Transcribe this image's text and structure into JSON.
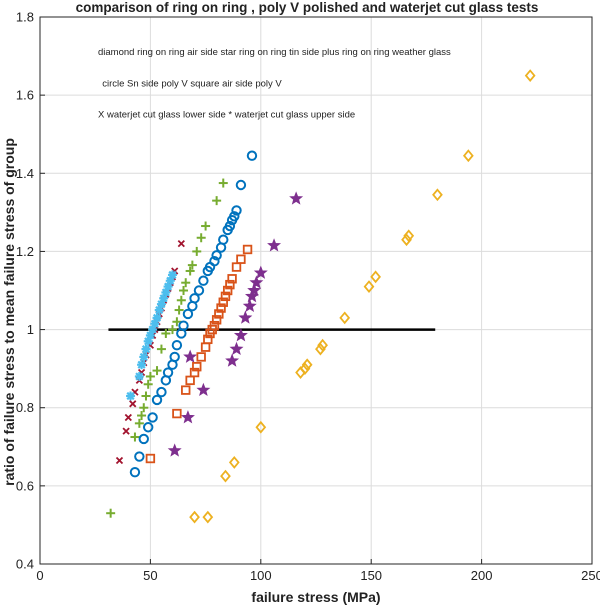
{
  "chart_data": {
    "type": "scatter",
    "title": "comparison of ring on ring , poly V polished and waterjet cut glass tests",
    "xlabel": "failure stress (MPa)",
    "ylabel": "ratio of failure stress to mean failure stress of group",
    "xlim": [
      0,
      250
    ],
    "ylim": [
      0.4,
      1.8
    ],
    "xticks": [
      0,
      50,
      100,
      150,
      200,
      250
    ],
    "yticks": [
      0.4,
      0.6,
      0.8,
      1.0,
      1.2,
      1.4,
      1.6,
      1.8
    ],
    "xtick_labels": [
      "0",
      "50",
      "100",
      "150",
      "200",
      "250"
    ],
    "ytick_labels": [
      "0.4",
      "0.6",
      "0.8",
      "1",
      "1.2",
      "1.4",
      "1.6",
      "1.8"
    ],
    "grid": true,
    "annotations": [
      "diamond ring on ring air side star ring on ring tin side plus ring on ring weather glass",
      "circle Sn side poly V  square air side poly V",
      "X waterjet cut glass lower side    * waterjet cut glass upper side"
    ],
    "reference_line": {
      "x": [
        31,
        179
      ],
      "y": [
        1.0,
        1.0
      ],
      "color": "#000000"
    },
    "series": [
      {
        "marker": "diamond",
        "color": "#EDB120",
        "points": [
          [
            70,
            0.52
          ],
          [
            76,
            0.52
          ],
          [
            84,
            0.625
          ],
          [
            88,
            0.66
          ],
          [
            100,
            0.75
          ],
          [
            118,
            0.89
          ],
          [
            120,
            0.9
          ],
          [
            121,
            0.91
          ],
          [
            127,
            0.95
          ],
          [
            128,
            0.96
          ],
          [
            138,
            1.03
          ],
          [
            149,
            1.11
          ],
          [
            152,
            1.135
          ],
          [
            166,
            1.23
          ],
          [
            167,
            1.24
          ],
          [
            180,
            1.345
          ],
          [
            194,
            1.445
          ],
          [
            222,
            1.65
          ]
        ]
      },
      {
        "marker": "star",
        "color": "#7E2F8E",
        "points": [
          [
            61,
            0.69
          ],
          [
            67,
            0.775
          ],
          [
            68,
            0.93
          ],
          [
            74,
            0.845
          ],
          [
            87,
            0.92
          ],
          [
            89,
            0.95
          ],
          [
            91,
            0.985
          ],
          [
            93,
            1.03
          ],
          [
            95,
            1.06
          ],
          [
            96,
            1.085
          ],
          [
            97,
            1.1
          ],
          [
            98,
            1.12
          ],
          [
            100,
            1.145
          ],
          [
            106,
            1.215
          ],
          [
            116,
            1.335
          ]
        ]
      },
      {
        "marker": "plus",
        "color": "#77AC30",
        "points": [
          [
            32,
            0.53
          ],
          [
            43,
            0.725
          ],
          [
            45,
            0.76
          ],
          [
            46,
            0.78
          ],
          [
            47,
            0.8
          ],
          [
            48,
            0.83
          ],
          [
            49,
            0.86
          ],
          [
            50,
            0.88
          ],
          [
            53,
            0.895
          ],
          [
            55,
            0.95
          ],
          [
            57,
            0.99
          ],
          [
            60,
            1.0
          ],
          [
            62,
            1.02
          ],
          [
            63,
            1.05
          ],
          [
            64,
            1.075
          ],
          [
            65,
            1.1
          ],
          [
            66,
            1.12
          ],
          [
            68,
            1.15
          ],
          [
            69,
            1.165
          ],
          [
            71,
            1.2
          ],
          [
            73,
            1.235
          ],
          [
            75,
            1.265
          ],
          [
            80,
            1.33
          ],
          [
            83,
            1.375
          ]
        ]
      },
      {
        "marker": "circle",
        "color": "#0072BD",
        "points": [
          [
            43,
            0.635
          ],
          [
            45,
            0.675
          ],
          [
            47,
            0.72
          ],
          [
            49,
            0.75
          ],
          [
            51,
            0.775
          ],
          [
            53,
            0.82
          ],
          [
            55,
            0.84
          ],
          [
            57,
            0.87
          ],
          [
            58,
            0.89
          ],
          [
            60,
            0.91
          ],
          [
            61,
            0.93
          ],
          [
            62,
            0.96
          ],
          [
            64,
            0.99
          ],
          [
            65,
            1.01
          ],
          [
            67,
            1.04
          ],
          [
            69,
            1.06
          ],
          [
            70,
            1.08
          ],
          [
            72,
            1.1
          ],
          [
            74,
            1.125
          ],
          [
            76,
            1.15
          ],
          [
            77,
            1.16
          ],
          [
            79,
            1.175
          ],
          [
            80,
            1.19
          ],
          [
            82,
            1.21
          ],
          [
            83,
            1.23
          ],
          [
            85,
            1.255
          ],
          [
            86,
            1.265
          ],
          [
            87,
            1.28
          ],
          [
            88,
            1.29
          ],
          [
            89,
            1.305
          ],
          [
            91,
            1.37
          ],
          [
            96,
            1.445
          ]
        ]
      },
      {
        "marker": "square",
        "color": "#D95319",
        "points": [
          [
            50,
            0.67
          ],
          [
            62,
            0.785
          ],
          [
            66,
            0.845
          ],
          [
            68,
            0.87
          ],
          [
            70,
            0.89
          ],
          [
            71,
            0.905
          ],
          [
            73,
            0.93
          ],
          [
            75,
            0.955
          ],
          [
            76,
            0.975
          ],
          [
            77,
            0.99
          ],
          [
            78,
            1.0
          ],
          [
            79,
            1.01
          ],
          [
            80,
            1.025
          ],
          [
            81,
            1.04
          ],
          [
            82,
            1.055
          ],
          [
            83,
            1.07
          ],
          [
            84,
            1.085
          ],
          [
            85,
            1.1
          ],
          [
            86,
            1.115
          ],
          [
            87,
            1.13
          ],
          [
            89,
            1.16
          ],
          [
            91,
            1.18
          ],
          [
            94,
            1.205
          ]
        ]
      },
      {
        "marker": "x",
        "color": "#A2142F",
        "points": [
          [
            36,
            0.665
          ],
          [
            39,
            0.74
          ],
          [
            40,
            0.775
          ],
          [
            42,
            0.81
          ],
          [
            43,
            0.84
          ],
          [
            45,
            0.87
          ],
          [
            46,
            0.89
          ],
          [
            47,
            0.915
          ],
          [
            48,
            0.935
          ],
          [
            50,
            0.96
          ],
          [
            51,
            0.985
          ],
          [
            52,
            1.0
          ],
          [
            53,
            1.02
          ],
          [
            54,
            1.04
          ],
          [
            55,
            1.055
          ],
          [
            56,
            1.075
          ],
          [
            57,
            1.09
          ],
          [
            58,
            1.105
          ],
          [
            59,
            1.12
          ],
          [
            60,
            1.135
          ],
          [
            61,
            1.15
          ],
          [
            64,
            1.22
          ]
        ]
      },
      {
        "marker": "asterisk",
        "color": "#4DBEEE",
        "points": [
          [
            41,
            0.83
          ],
          [
            45,
            0.88
          ],
          [
            46,
            0.91
          ],
          [
            47,
            0.93
          ],
          [
            48,
            0.95
          ],
          [
            49,
            0.97
          ],
          [
            50,
            0.985
          ],
          [
            51,
            1.0
          ],
          [
            52,
            1.015
          ],
          [
            53,
            1.03
          ],
          [
            54,
            1.05
          ],
          [
            55,
            1.065
          ],
          [
            56,
            1.08
          ],
          [
            57,
            1.095
          ],
          [
            58,
            1.11
          ],
          [
            59,
            1.125
          ],
          [
            60,
            1.14
          ]
        ]
      }
    ]
  }
}
